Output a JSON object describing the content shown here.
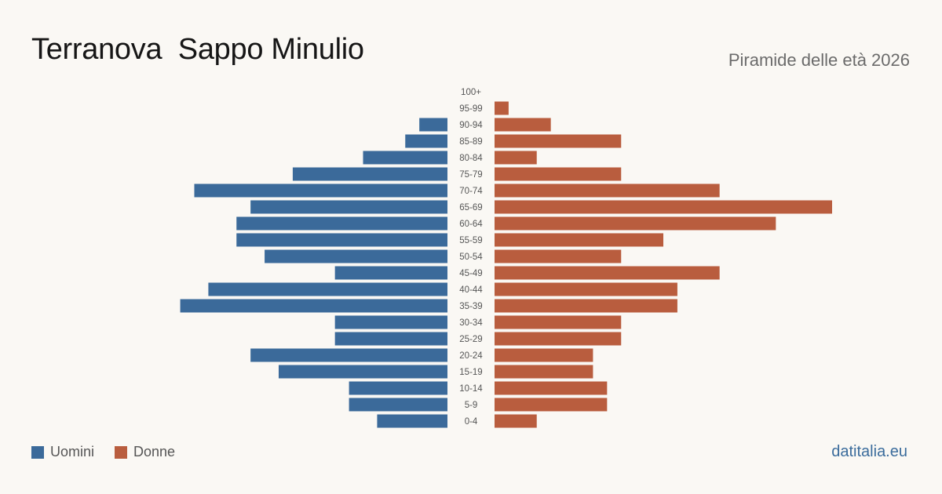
{
  "header": {
    "title": "Terranova  Sappo Minulio",
    "subtitle": "Piramide delle età 2026"
  },
  "legend": {
    "men_label": "Uomini",
    "women_label": "Donne"
  },
  "footer": {
    "brand": "datitalia.eu"
  },
  "colors": {
    "men": "#3b6a9a",
    "women": "#b95d3e"
  },
  "chart_data": {
    "type": "bar",
    "orientation": "horizontal-pyramid",
    "categories": [
      "100+",
      "95-99",
      "90-94",
      "85-89",
      "80-84",
      "75-79",
      "70-74",
      "65-69",
      "60-64",
      "55-59",
      "50-54",
      "45-49",
      "40-44",
      "35-39",
      "30-34",
      "25-29",
      "20-24",
      "15-19",
      "10-14",
      "5-9",
      "0-4"
    ],
    "series": [
      {
        "name": "Uomini",
        "values": [
          0,
          0,
          2,
          3,
          6,
          11,
          18,
          14,
          15,
          15,
          13,
          8,
          17,
          19,
          8,
          8,
          14,
          12,
          7,
          7,
          5
        ]
      },
      {
        "name": "Donne",
        "values": [
          0,
          1,
          4,
          9,
          3,
          9,
          16,
          24,
          20,
          12,
          9,
          16,
          13,
          13,
          9,
          9,
          7,
          7,
          8,
          8,
          3
        ]
      }
    ],
    "xlim": [
      0,
      24
    ]
  }
}
